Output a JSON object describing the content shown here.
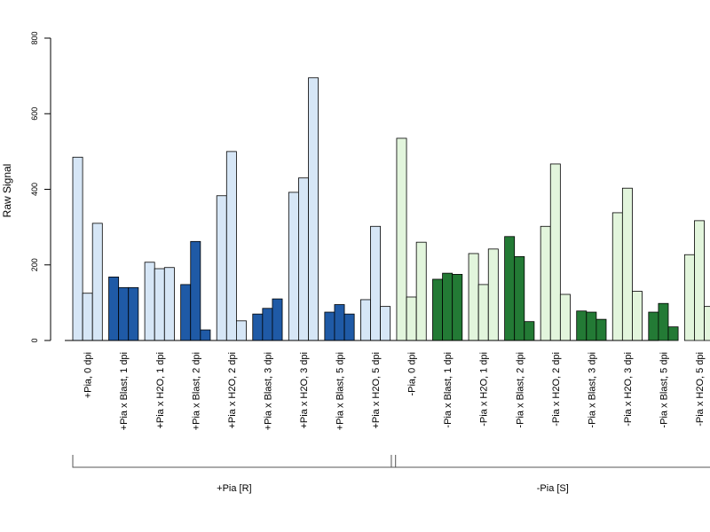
{
  "chart_data": {
    "type": "bar",
    "ylabel": "Raw Signal",
    "xlabel": "",
    "ylim": [
      0,
      800
    ],
    "yticks": [
      0,
      200,
      400,
      600,
      800
    ],
    "grid": false,
    "bars_per_category": 3,
    "colors": {
      "blue_light": "#d6e6f6",
      "blue_dark": "#1f5aa6",
      "green_light": "#e2f5dc",
      "green_dark": "#237a35",
      "outline": "#000000",
      "axis": "#000000"
    },
    "categories": [
      {
        "label": "+Pia, 0 dpi",
        "values": [
          485,
          125,
          310
        ],
        "color": "blue_light"
      },
      {
        "label": "+Pia x Blast, 1 dpi",
        "values": [
          168,
          140,
          140
        ],
        "color": "blue_dark"
      },
      {
        "label": "+Pia x H2O, 1 dpi",
        "values": [
          207,
          190,
          193
        ],
        "color": "blue_light"
      },
      {
        "label": "+Pia x Blast, 2 dpi",
        "values": [
          148,
          262,
          28
        ],
        "color": "blue_dark"
      },
      {
        "label": "+Pia x H2O, 2 dpi",
        "values": [
          383,
          500,
          52
        ],
        "color": "blue_light"
      },
      {
        "label": "+Pia x Blast, 3 dpi",
        "values": [
          70,
          85,
          110
        ],
        "color": "blue_dark"
      },
      {
        "label": "+Pia x H2O, 3 dpi",
        "values": [
          392,
          430,
          695
        ],
        "color": "blue_light"
      },
      {
        "label": "+Pia x Blast, 5 dpi",
        "values": [
          75,
          95,
          70
        ],
        "color": "blue_dark"
      },
      {
        "label": "+Pia x H2O, 5 dpi",
        "values": [
          108,
          302,
          90
        ],
        "color": "blue_light"
      },
      {
        "label": "-Pia, 0 dpi",
        "values": [
          535,
          115,
          260
        ],
        "color": "green_light"
      },
      {
        "label": "-Pia x Blast, 1 dpi",
        "values": [
          162,
          178,
          175
        ],
        "color": "green_dark"
      },
      {
        "label": "-Pia x H2O, 1 dpi",
        "values": [
          230,
          148,
          242
        ],
        "color": "green_light"
      },
      {
        "label": "-Pia x Blast, 2 dpi",
        "values": [
          275,
          222,
          50
        ],
        "color": "green_dark"
      },
      {
        "label": "-Pia x H2O, 2 dpi",
        "values": [
          302,
          467,
          122
        ],
        "color": "green_light"
      },
      {
        "label": "-Pia x Blast, 3 dpi",
        "values": [
          78,
          75,
          56
        ],
        "color": "green_dark"
      },
      {
        "label": "-Pia x H2O, 3 dpi",
        "values": [
          338,
          403,
          130
        ],
        "color": "green_light"
      },
      {
        "label": "-Pia x Blast, 5 dpi",
        "values": [
          75,
          98,
          36
        ],
        "color": "green_dark"
      },
      {
        "label": "-Pia x H2O, 5 dpi",
        "values": [
          227,
          317,
          90
        ],
        "color": "green_light"
      }
    ],
    "groups": [
      {
        "label": "+Pia [R]",
        "first_category": 0,
        "last_category": 8
      },
      {
        "label": "-Pia [S]",
        "first_category": 9,
        "last_category": 17
      }
    ]
  }
}
